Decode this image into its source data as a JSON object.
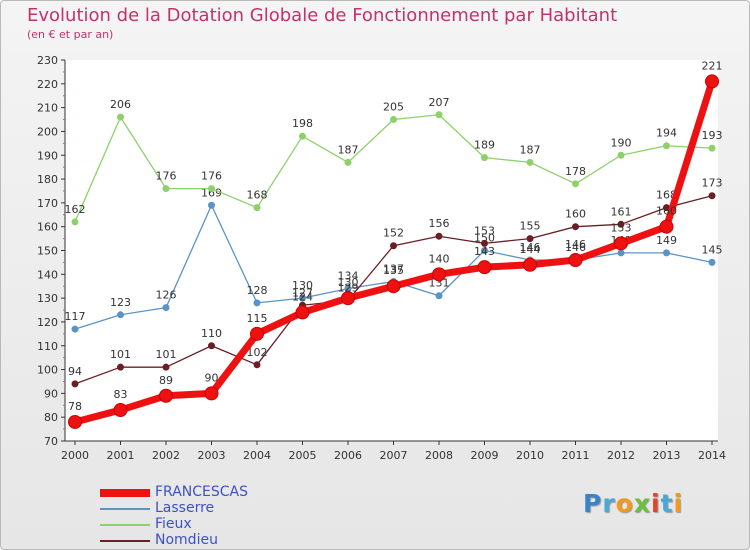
{
  "chart_data": {
    "type": "line",
    "title": "Evolution de la Dotation Globale de Fonctionnement par Habitant",
    "subtitle": "(en € et par an)",
    "xlabel": "",
    "ylabel": "",
    "ylim": [
      70,
      230
    ],
    "yticks": [
      70,
      80,
      90,
      100,
      110,
      120,
      130,
      140,
      150,
      160,
      170,
      180,
      190,
      200,
      210,
      220,
      230
    ],
    "x": [
      "2000",
      "2001",
      "2002",
      "2003",
      "2004",
      "2005",
      "2006",
      "2007",
      "2008",
      "2009",
      "2010",
      "2011",
      "2012",
      "2013",
      "2014"
    ],
    "legend_position": "bottom-left",
    "grid": false,
    "series": [
      {
        "name": "Lasserre",
        "color": "#5a94c7",
        "values": [
          117,
          123,
          126,
          169,
          128,
          130,
          134,
          137,
          131,
          150,
          146,
          146,
          149,
          149,
          145
        ],
        "labels": [
          "117",
          "123",
          "126",
          "169",
          "128",
          "130",
          "134",
          "137",
          "131",
          "150",
          "146",
          "146",
          "149",
          "149",
          "145"
        ]
      },
      {
        "name": "Fieux",
        "color": "#8fd06a",
        "values": [
          162,
          206,
          176,
          176,
          168,
          198,
          187,
          205,
          207,
          189,
          187,
          178,
          190,
          194,
          193
        ],
        "labels": [
          "162",
          "206",
          "176",
          "176",
          "168",
          "198",
          "187",
          "205",
          "207",
          "189",
          "187",
          "178",
          "190",
          "194",
          "193"
        ]
      },
      {
        "name": "Nomdieu",
        "color": "#6b1f24",
        "values": [
          94,
          101,
          101,
          110,
          102,
          127,
          129,
          152,
          156,
          153,
          155,
          160,
          161,
          168,
          173
        ],
        "labels": [
          "94",
          "101",
          "101",
          "110",
          "102",
          "127",
          "129",
          "152",
          "156",
          "153",
          "155",
          "160",
          "161",
          "168",
          "173"
        ]
      },
      {
        "name": "FRANCESCAS",
        "color": "#ee1111",
        "values": [
          78,
          83,
          89,
          90,
          115,
          124,
          130,
          135,
          140,
          143,
          144,
          146,
          153,
          160,
          221
        ],
        "labels": [
          "78",
          "83",
          "89",
          "90",
          "115",
          "124",
          "130",
          "135",
          "140",
          "143",
          "144",
          "146",
          "153",
          "160",
          "221"
        ]
      }
    ]
  },
  "legend": [
    "FRANCESCAS",
    "Lasserre",
    "Fieux",
    "Nomdieu"
  ],
  "logo": {
    "letters": [
      "P",
      "r",
      "o",
      "x",
      "i",
      "t",
      "i"
    ],
    "colors": [
      "#3a83c5",
      "#4aa8d8",
      "#f19a1e",
      "#6cbf3a",
      "#e0452a",
      "#4aa8d8",
      "#f19a1e"
    ]
  }
}
